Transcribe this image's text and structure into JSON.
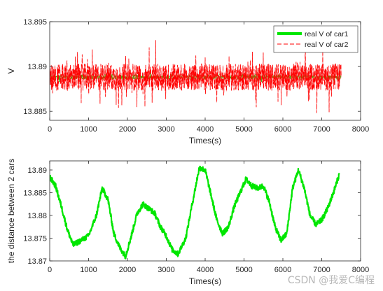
{
  "watermark": "CSDN @我爱C编程",
  "chart_data": [
    {
      "type": "line",
      "title": "",
      "xlabel": "Times(s)",
      "ylabel": "V",
      "xlim": [
        0,
        8000
      ],
      "ylim": [
        13.884,
        13.895
      ],
      "xticks": [
        0,
        1000,
        2000,
        3000,
        4000,
        5000,
        6000,
        7000,
        8000
      ],
      "yticks": [
        13.885,
        13.89,
        13.895
      ],
      "ytick_labels": [
        "13.885",
        "13.89",
        "13.895"
      ],
      "grid": false,
      "legend_position": "top-right",
      "series": [
        {
          "name": "real V of car1",
          "color": "#00e600",
          "style": "solid-thick",
          "x_range": [
            0,
            7500
          ],
          "mean": 13.8888,
          "noise_amplitude": 0.0002,
          "x": [
            0,
            7500
          ],
          "values": [
            13.8888,
            13.8888
          ]
        },
        {
          "name": "real V of car2",
          "color": "#ff0000",
          "style": "dashed",
          "x_range": [
            0,
            7500
          ],
          "mean": 13.8888,
          "noise_amplitude": 0.0015,
          "x": [
            0,
            7500
          ],
          "values": [
            13.8888,
            13.8888
          ]
        }
      ]
    },
    {
      "type": "line",
      "title": "",
      "xlabel": "Times(s)",
      "ylabel": "the distance between 2 cars",
      "xlim": [
        0,
        8000
      ],
      "ylim": [
        13.87,
        13.892
      ],
      "xticks": [
        0,
        1000,
        2000,
        3000,
        4000,
        5000,
        6000,
        7000,
        8000
      ],
      "yticks": [
        13.87,
        13.875,
        13.88,
        13.885,
        13.89
      ],
      "ytick_labels": [
        "13.87",
        "13.875",
        "13.88",
        "13.885",
        "13.89"
      ],
      "grid": false,
      "legend_position": "none",
      "series": [
        {
          "color": "#00e600",
          "x": [
            0,
            150,
            300,
            450,
            600,
            800,
            1000,
            1200,
            1350,
            1500,
            1650,
            1800,
            1950,
            2100,
            2250,
            2400,
            2550,
            2700,
            2850,
            3000,
            3150,
            3300,
            3500,
            3700,
            3850,
            4000,
            4150,
            4300,
            4450,
            4600,
            4750,
            4900,
            5050,
            5200,
            5350,
            5500,
            5650,
            5800,
            5950,
            6100,
            6250,
            6400,
            6550,
            6700,
            6850,
            7000,
            7150,
            7300,
            7450
          ],
          "values": [
            13.8885,
            13.8865,
            13.882,
            13.877,
            13.8735,
            13.8745,
            13.8755,
            13.88,
            13.886,
            13.8835,
            13.876,
            13.873,
            13.871,
            13.8755,
            13.8805,
            13.8825,
            13.8815,
            13.8805,
            13.8775,
            13.8755,
            13.8725,
            13.8715,
            13.875,
            13.884,
            13.8905,
            13.89,
            13.8845,
            13.879,
            13.876,
            13.8775,
            13.882,
            13.885,
            13.888,
            13.8865,
            13.886,
            13.8865,
            13.883,
            13.8775,
            13.8745,
            13.876,
            13.886,
            13.89,
            13.886,
            13.88,
            13.878,
            13.879,
            13.8815,
            13.885,
            13.889
          ]
        }
      ]
    }
  ]
}
